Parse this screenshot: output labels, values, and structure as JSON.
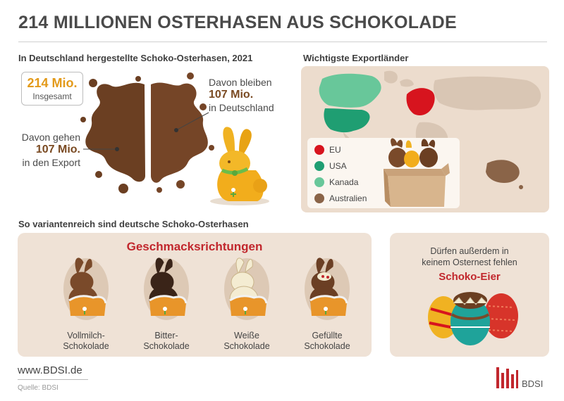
{
  "title": "214 MILLIONEN OSTERHASEN AUS SCHOKOLADE",
  "production": {
    "label": "In Deutschland hergestellte Schoko-Osterhasen, 2021",
    "total_value": "214 Mio.",
    "total_label": "Insgesamt",
    "stay": {
      "intro": "Davon bleiben",
      "value": "107 Mio.",
      "rest": "in Deutschland"
    },
    "export": {
      "intro": "Davon gehen",
      "value": "107 Mio.",
      "rest": "in den Export"
    }
  },
  "export_countries": {
    "label": "Wichtigste Exportländer",
    "legend": [
      {
        "label": "EU",
        "color": "#d7141e"
      },
      {
        "label": "USA",
        "color": "#1f9e72"
      },
      {
        "label": "Kanada",
        "color": "#68c79a"
      },
      {
        "label": "Australien",
        "color": "#8a6448"
      }
    ]
  },
  "varieties": {
    "label": "So variantenreich sind deutsche Schoko-Osterhasen",
    "panel_title": "Geschmacksrichtungen",
    "items": [
      {
        "line1": "Vollmilch-",
        "line2": "Schokolade",
        "color": "#7a4a2a"
      },
      {
        "line1": "Bitter-",
        "line2": "Schokolade",
        "color": "#3a2418"
      },
      {
        "line1": "Weiße",
        "line2": "Schokolade",
        "color": "#f4ecd2"
      },
      {
        "line1": "Gefüllte",
        "line2": "Schokolade",
        "color": "#6b3f24"
      }
    ]
  },
  "eggs": {
    "line1": "Dürfen außerdem in",
    "line2": "keinem Osternest fehlen",
    "highlight": "Schoko-Eier"
  },
  "footer": {
    "url": "www.BDSI.de",
    "source": "Quelle: BDSI",
    "brand": "BDSI"
  }
}
